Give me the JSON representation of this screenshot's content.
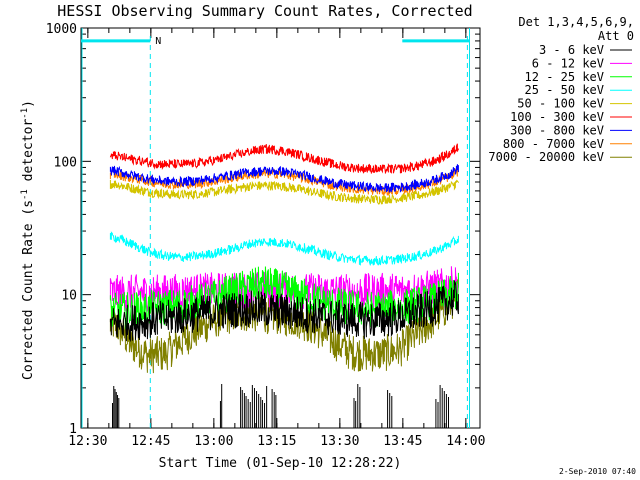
{
  "chart_data": {
    "type": "line",
    "title": "HESSI Observing Summary Count Rates, Corrected",
    "xlabel": "Start Time (01-Sep-10 12:28:22)",
    "ylabel_main": "Corrected Count Rate (s",
    "ylabel_sup1": "-1",
    "ylabel_mid": " detector",
    "ylabel_sup2": "-1",
    "ylabel_end": ")",
    "yscale": "log",
    "ylim": [
      1,
      1000
    ],
    "xlim_minutes": [
      0,
      95
    ],
    "x_ticks": [
      {
        "label": "12:30",
        "minute": 1.63
      },
      {
        "label": "12:45",
        "minute": 16.63
      },
      {
        "label": "13:00",
        "minute": 31.63
      },
      {
        "label": "13:15",
        "minute": 46.63
      },
      {
        "label": "13:30",
        "minute": 61.63
      },
      {
        "label": "13:45",
        "minute": 76.63
      },
      {
        "label": "14:00",
        "minute": 91.63
      }
    ],
    "y_ticks": [
      {
        "label": "1",
        "value": 1
      },
      {
        "label": "10",
        "value": 10
      },
      {
        "label": "100",
        "value": 100
      },
      {
        "label": "1000",
        "value": 1000
      }
    ],
    "legend_header": [
      "Det 1,3,4,5,6,9,",
      "Att 0"
    ],
    "data_window_minutes": [
      7.0,
      90.0
    ],
    "series": [
      {
        "name": "3 - 6 keV",
        "color": "#000000",
        "x": [
          8,
          12,
          16,
          20,
          24,
          28,
          32,
          36,
          40,
          44,
          48,
          52,
          56,
          60,
          64,
          68,
          72,
          76,
          80,
          84,
          88,
          90
        ],
        "y": [
          6.0,
          6.2,
          6.4,
          6.6,
          6.9,
          7.2,
          7.5,
          7.7,
          7.8,
          7.7,
          7.5,
          7.2,
          6.9,
          6.7,
          6.5,
          6.4,
          6.5,
          6.8,
          7.3,
          8.0,
          9.0,
          9.6
        ]
      },
      {
        "name": "6 - 12 keV",
        "color": "#ff00ff",
        "x": [
          8,
          12,
          16,
          20,
          24,
          28,
          32,
          36,
          40,
          44,
          48,
          52,
          56,
          60,
          64,
          68,
          72,
          76,
          80,
          84,
          88,
          90
        ],
        "y": [
          10.2,
          10.3,
          10.3,
          10.4,
          10.5,
          10.6,
          10.7,
          10.8,
          10.9,
          10.9,
          10.8,
          10.7,
          10.6,
          10.5,
          10.5,
          10.5,
          10.6,
          10.7,
          10.9,
          11.2,
          11.8,
          12.3
        ]
      },
      {
        "name": "12 - 25 keV",
        "color": "#00ff00",
        "x": [
          8,
          12,
          16,
          20,
          24,
          28,
          32,
          36,
          40,
          44,
          48,
          52,
          56,
          60,
          64,
          68,
          72,
          76,
          80,
          84,
          88,
          90
        ],
        "y": [
          7.5,
          7.7,
          7.8,
          8.0,
          8.3,
          8.8,
          9.5,
          10.5,
          11.5,
          12.0,
          11.0,
          10.0,
          9.0,
          8.4,
          8.0,
          7.8,
          7.8,
          8.0,
          8.4,
          9.0,
          10.0,
          10.8
        ]
      },
      {
        "name": "25 - 50 keV",
        "color": "#00ffff",
        "x": [
          8,
          12,
          16,
          20,
          24,
          28,
          32,
          36,
          40,
          44,
          48,
          52,
          56,
          60,
          64,
          68,
          72,
          76,
          80,
          84,
          88,
          90
        ],
        "y": [
          27,
          24,
          21,
          19.5,
          19,
          19.5,
          20.5,
          22,
          24,
          25,
          24.5,
          23,
          21,
          19.5,
          18.5,
          18,
          18,
          18.5,
          19.5,
          21,
          24,
          26
        ]
      },
      {
        "name": "50 - 100 keV",
        "color": "#d4c400",
        "x": [
          8,
          12,
          16,
          20,
          24,
          28,
          32,
          36,
          40,
          44,
          48,
          52,
          56,
          60,
          64,
          68,
          72,
          76,
          80,
          84,
          88,
          90
        ],
        "y": [
          68,
          63,
          59,
          57,
          56,
          57,
          59,
          62,
          65,
          66,
          65,
          62,
          58,
          55,
          53,
          52,
          52,
          53,
          55,
          59,
          65,
          70
        ]
      },
      {
        "name": "100 - 300 keV",
        "color": "#ff0000",
        "x": [
          8,
          12,
          16,
          20,
          24,
          28,
          32,
          36,
          40,
          44,
          48,
          52,
          56,
          60,
          64,
          68,
          72,
          76,
          80,
          84,
          88,
          90
        ],
        "y": [
          110,
          104,
          98,
          95,
          95,
          97,
          102,
          110,
          118,
          124,
          120,
          112,
          103,
          95,
          90,
          88,
          87,
          88,
          92,
          100,
          115,
          130
        ]
      },
      {
        "name": "300 - 800 keV",
        "color": "#0000ff",
        "x": [
          8,
          12,
          16,
          20,
          24,
          28,
          32,
          36,
          40,
          44,
          48,
          52,
          56,
          60,
          64,
          68,
          72,
          76,
          80,
          84,
          88,
          90
        ],
        "y": [
          85,
          79,
          74,
          71,
          70,
          72,
          75,
          79,
          83,
          85,
          84,
          80,
          74,
          69,
          66,
          64,
          63,
          64,
          67,
          72,
          81,
          90
        ]
      },
      {
        "name": "800 - 7000 keV",
        "color": "#ff8000",
        "x": [
          8,
          12,
          16,
          20,
          24,
          28,
          32,
          36,
          40,
          44,
          48,
          52,
          56,
          60,
          64,
          68,
          72,
          76,
          80,
          84,
          88,
          90
        ],
        "y": [
          80,
          75,
          71,
          68,
          67,
          68,
          71,
          75,
          79,
          81,
          80,
          76,
          71,
          66,
          63,
          61,
          60,
          61,
          64,
          69,
          77,
          85
        ]
      },
      {
        "name": "7000 - 20000 keV",
        "color": "#808000",
        "x": [
          8,
          12,
          16,
          20,
          24,
          28,
          32,
          36,
          40,
          44,
          48,
          52,
          56,
          60,
          64,
          68,
          72,
          76,
          80,
          84,
          88,
          90
        ],
        "y": [
          6.0,
          4.2,
          3.5,
          3.6,
          4.5,
          5.5,
          6.5,
          7.0,
          7.2,
          7.0,
          6.8,
          6.4,
          5.5,
          4.5,
          3.7,
          3.6,
          3.6,
          3.9,
          5.0,
          6.5,
          8.5,
          10.5
        ]
      }
    ],
    "night_lines_minutes": [
      0,
      92.5
    ],
    "saa_lines_minutes": [
      16.5,
      92
    ],
    "saa_bar_label": "N",
    "saa_bars_minutes": [
      [
        0,
        16.5
      ],
      [
        76.5,
        92.5
      ]
    ],
    "saa_bar_level": 800,
    "flag_marks_minutes": [
      7.5,
      7.8,
      8.1,
      8.4,
      8.7,
      9.0,
      33.2,
      33.5,
      38.0,
      38.4,
      38.9,
      39.3,
      39.8,
      40.3,
      40.8,
      41.3,
      41.8,
      42.3,
      42.8,
      43.2,
      43.7,
      44.2,
      45.5,
      46.0,
      46.4,
      65.0,
      65.4,
      65.9,
      66.4,
      73.0,
      73.5,
      74.0,
      84.5,
      85.0,
      85.5,
      86.0,
      86.5,
      87.0,
      87.5
    ],
    "footer_date": "2-Sep-2010 07:40"
  }
}
